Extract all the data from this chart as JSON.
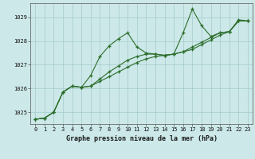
{
  "title": "Graphe pression niveau de la mer (hPa)",
  "fig_bg_color": "#cce8e8",
  "plot_bg_color": "#cce8e8",
  "line_color": "#2d6e2d",
  "marker": "+",
  "xlim": [
    -0.5,
    23.5
  ],
  "ylim": [
    1024.5,
    1029.6
  ],
  "yticks": [
    1025,
    1026,
    1027,
    1028,
    1029
  ],
  "xticks": [
    0,
    1,
    2,
    3,
    4,
    5,
    6,
    7,
    8,
    9,
    10,
    11,
    12,
    13,
    14,
    15,
    16,
    17,
    18,
    19,
    20,
    21,
    22,
    23
  ],
  "series": [
    [
      1024.7,
      1024.75,
      1025.0,
      1025.85,
      1026.1,
      1026.05,
      1026.55,
      1027.35,
      1027.8,
      1028.1,
      1028.35,
      1027.75,
      1027.5,
      1027.45,
      1027.4,
      1027.45,
      1028.35,
      1029.35,
      1028.65,
      1028.2,
      1028.35,
      1028.4,
      1028.9,
      1028.85
    ],
    [
      1024.7,
      1024.75,
      1025.0,
      1025.85,
      1026.1,
      1026.05,
      1026.1,
      1026.4,
      1026.7,
      1026.95,
      1027.2,
      1027.35,
      1027.45,
      1027.45,
      1027.4,
      1027.45,
      1027.55,
      1027.75,
      1027.95,
      1028.15,
      1028.35,
      1028.4,
      1028.85,
      1028.85
    ],
    [
      1024.7,
      1024.75,
      1025.0,
      1025.85,
      1026.1,
      1026.05,
      1026.1,
      1026.3,
      1026.5,
      1026.7,
      1026.9,
      1027.1,
      1027.25,
      1027.35,
      1027.4,
      1027.45,
      1027.55,
      1027.65,
      1027.85,
      1028.05,
      1028.25,
      1028.4,
      1028.85,
      1028.85
    ]
  ],
  "xlabel_fontsize": 6.0,
  "tick_fontsize": 5.0,
  "linewidth": 0.8,
  "markersize": 3.0
}
